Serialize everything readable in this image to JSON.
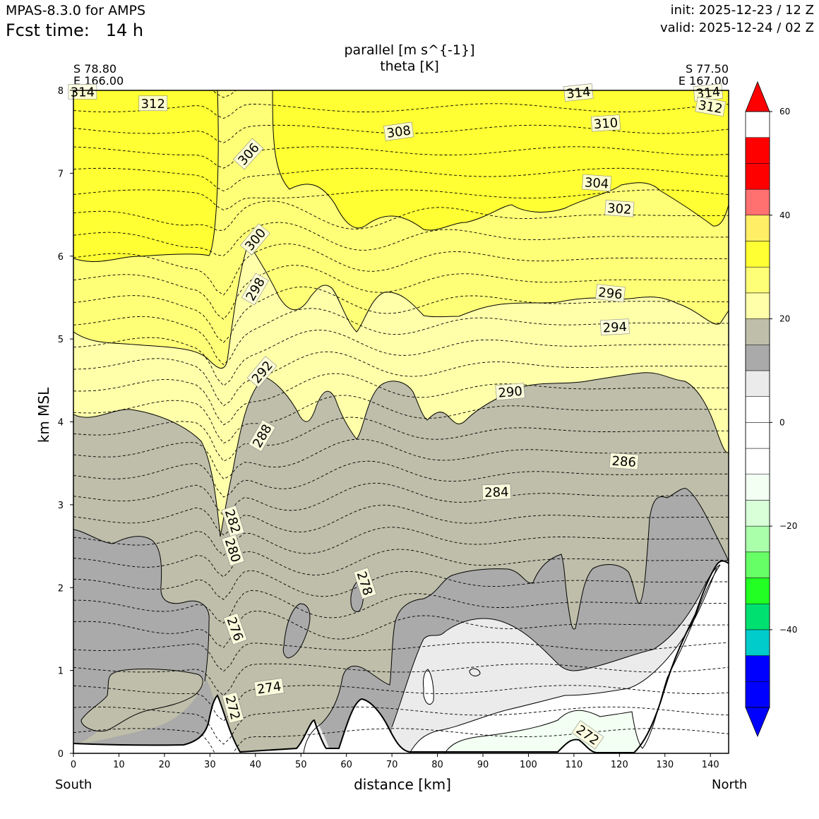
{
  "header": {
    "model": "MPAS-8.3.0 for AMPS",
    "fcst_time": "Fcst time:   14 h",
    "init": "init: 2025-12-23 / 12 Z",
    "valid": "valid: 2025-12-24 / 02 Z"
  },
  "chart_data": {
    "type": "contour",
    "title": "parallel [m s^{-1}]",
    "subtitle": "theta [K]",
    "xlabel": "distance [km]",
    "ylabel": "km MSL",
    "xlim": [
      0,
      144
    ],
    "ylim": [
      0,
      8
    ],
    "xticks": [
      0,
      10,
      20,
      30,
      40,
      50,
      60,
      70,
      80,
      90,
      100,
      110,
      120,
      130,
      140
    ],
    "yticks": [
      0,
      1,
      2,
      3,
      4,
      5,
      6,
      7,
      8
    ],
    "left_end": {
      "lat": "S 78.80",
      "lon": "E 166.00",
      "label": "South"
    },
    "right_end": {
      "lat": "S 77.50",
      "lon": "E 167.00",
      "label": "North"
    },
    "colorbar": {
      "levels": [
        -55,
        -50,
        -45,
        -40,
        -35,
        -30,
        -25,
        -20,
        -15,
        -10,
        -5,
        0,
        5,
        10,
        15,
        20,
        25,
        30,
        35,
        40,
        45,
        50,
        55,
        60
      ],
      "colors": [
        "#0000ff",
        "#0000ff",
        "#00cccc",
        "#00e070",
        "#22ff22",
        "#66ff66",
        "#aaffaa",
        "#d8ffd8",
        "#f2fff2",
        "#ffffff",
        "#ffffff",
        "#ffffff",
        "#ebebeb",
        "#aaaaaa",
        "#bebeaa",
        "#ffffaa",
        "#ffff77",
        "#ffff33",
        "#ffee66",
        "#ff7070",
        "#ff0000",
        "#ff0000"
      ],
      "tick_labels": [
        "60",
        "40",
        "20",
        "0",
        "−20",
        "−40"
      ],
      "tick_values": [
        60,
        40,
        20,
        0,
        -20,
        -40
      ],
      "extend": "both"
    },
    "theta_contour_labels": [
      {
        "label": "314",
        "x": 2,
        "y": 7.98,
        "rot": 0
      },
      {
        "label": "312",
        "x": 17.5,
        "y": 7.84,
        "rot": 0
      },
      {
        "label": "306",
        "x": 38.5,
        "y": 7.23,
        "rot": -48
      },
      {
        "label": "308",
        "x": 71.5,
        "y": 7.5,
        "rot": -8
      },
      {
        "label": "314",
        "x": 111,
        "y": 7.97,
        "rot": -6
      },
      {
        "label": "314",
        "x": 139.5,
        "y": 7.97,
        "rot": -6
      },
      {
        "label": "312",
        "x": 140,
        "y": 7.8,
        "rot": 10
      },
      {
        "label": "310",
        "x": 117,
        "y": 7.6,
        "rot": -4
      },
      {
        "label": "304",
        "x": 115,
        "y": 6.88,
        "rot": 4
      },
      {
        "label": "302",
        "x": 120,
        "y": 6.57,
        "rot": 4
      },
      {
        "label": "300",
        "x": 40,
        "y": 6.2,
        "rot": -50
      },
      {
        "label": "298",
        "x": 40,
        "y": 5.6,
        "rot": -60
      },
      {
        "label": "296",
        "x": 118,
        "y": 5.55,
        "rot": 6
      },
      {
        "label": "294",
        "x": 119,
        "y": 5.14,
        "rot": -3
      },
      {
        "label": "292",
        "x": 41.5,
        "y": 4.6,
        "rot": -50
      },
      {
        "label": "290",
        "x": 96,
        "y": 4.36,
        "rot": -5
      },
      {
        "label": "288",
        "x": 41.5,
        "y": 3.83,
        "rot": -60
      },
      {
        "label": "286",
        "x": 121,
        "y": 3.52,
        "rot": 4
      },
      {
        "label": "284",
        "x": 93,
        "y": 3.15,
        "rot": -2
      },
      {
        "label": "282",
        "x": 35,
        "y": 2.8,
        "rot": 72
      },
      {
        "label": "280",
        "x": 35,
        "y": 2.45,
        "rot": 72
      },
      {
        "label": "278",
        "x": 64,
        "y": 2.05,
        "rot": 72
      },
      {
        "label": "276",
        "x": 35.5,
        "y": 1.5,
        "rot": 70
      },
      {
        "label": "274",
        "x": 43,
        "y": 0.79,
        "rot": -8
      },
      {
        "label": "272",
        "x": 35,
        "y": 0.55,
        "rot": 75
      },
      {
        "label": "272",
        "x": 113,
        "y": 0.22,
        "rot": 35
      }
    ]
  }
}
